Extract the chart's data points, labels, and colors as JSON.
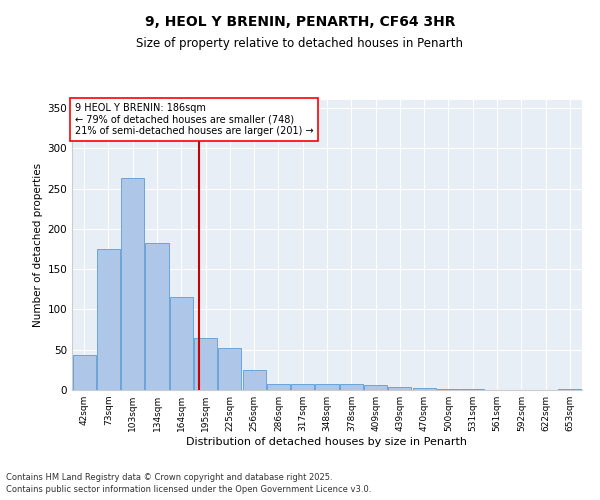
{
  "title": "9, HEOL Y BRENIN, PENARTH, CF64 3HR",
  "subtitle": "Size of property relative to detached houses in Penarth",
  "xlabel": "Distribution of detached houses by size in Penarth",
  "ylabel": "Number of detached properties",
  "bar_categories": [
    "42sqm",
    "73sqm",
    "103sqm",
    "134sqm",
    "164sqm",
    "195sqm",
    "225sqm",
    "256sqm",
    "286sqm",
    "317sqm",
    "348sqm",
    "378sqm",
    "409sqm",
    "439sqm",
    "470sqm",
    "500sqm",
    "531sqm",
    "561sqm",
    "592sqm",
    "622sqm",
    "653sqm"
  ],
  "bar_values": [
    43,
    175,
    263,
    183,
    115,
    65,
    52,
    25,
    7,
    7,
    8,
    7,
    6,
    4,
    3,
    1,
    1,
    0,
    0,
    0,
    1
  ],
  "bar_color": "#aec6e8",
  "bar_edgecolor": "#5b9bd5",
  "vline_color": "#cc0000",
  "vline_x_index": 4.72,
  "property_label": "9 HEOL Y BRENIN: 186sqm",
  "annotation_line1": "← 79% of detached houses are smaller (748)",
  "annotation_line2": "21% of semi-detached houses are larger (201) →",
  "ylim": [
    0,
    360
  ],
  "yticks": [
    0,
    50,
    100,
    150,
    200,
    250,
    300,
    350
  ],
  "bg_color": "#e8eef5",
  "footer1": "Contains HM Land Registry data © Crown copyright and database right 2025.",
  "footer2": "Contains public sector information licensed under the Open Government Licence v3.0."
}
